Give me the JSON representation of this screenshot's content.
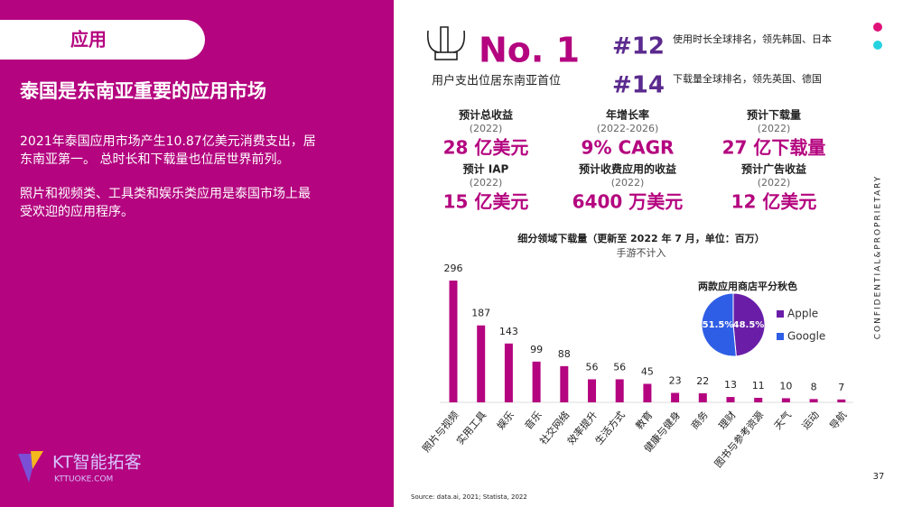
{
  "tab": "应用",
  "left": {
    "title": "泰国是东南亚重要的应用市场",
    "paragraphs": [
      "2021年泰国应用市场产生10.87亿美元消费支出，居",
      "东南亚第一。 总时长和下载量也位居世界前列。",
      "照片和视频类、工具类和娱乐类应用是泰国市场上最",
      "受欢迎的应用程序。"
    ]
  },
  "logo": {
    "name": "KT智能拓客",
    "url": "KTTUOKE.COM"
  },
  "rank": {
    "big": "No. 1",
    "caption": "用户支出位居东南亚首位",
    "items": [
      {
        "rank": "#12",
        "text": "使用时长全球排名，领先韩国、日本"
      },
      {
        "rank": "#14",
        "text": "下载量全球排名，领先英国、德国"
      }
    ]
  },
  "stats": [
    {
      "label": "预计总收益",
      "sub": "(2022)",
      "value": "28 亿美元"
    },
    {
      "label": "年增长率",
      "sub": "(2022-2026)",
      "value": "9% CAGR"
    },
    {
      "label": "预计下载量",
      "sub": "(2022)",
      "value": "27 亿下载量"
    },
    {
      "label": "预计 IAP",
      "sub": "(2022)",
      "value": "15 亿美元"
    },
    {
      "label": "预计收费应用的收益",
      "sub": "(2022)",
      "value": "6400 万美元"
    },
    {
      "label": "预计广告收益",
      "sub": "(2022)",
      "value": "12 亿美元"
    }
  ],
  "side_text": "CONFIDENTIAL&PROPRIETARY",
  "page_number": "37",
  "source": "Source: data.ai, 2021; Statista, 2022",
  "chart_data": [
    {
      "type": "bar",
      "title": "细分领域下载量（更新至 2022 年 7 月，单位：百万）",
      "subtitle": "手游不计入",
      "color": "#b4047f",
      "categories": [
        "照片与视频",
        "实用工具",
        "娱乐",
        "音乐",
        "社交网络",
        "效率提升",
        "生活方式",
        "教育",
        "健康与健身",
        "商务",
        "理财",
        "图书与参考资源",
        "天气",
        "运动",
        "导航"
      ],
      "values": [
        296,
        187,
        143,
        99,
        88,
        56,
        56,
        45,
        23,
        22,
        13,
        11,
        10,
        8,
        7
      ]
    },
    {
      "type": "pie",
      "title": "两款应用商店平分秋色",
      "legend": "right",
      "categories": [
        "Apple",
        "Google"
      ],
      "values": [
        48.5,
        51.5
      ],
      "value_labels": [
        "48.5%",
        "51.5%"
      ],
      "colors": [
        "#6a1ea8",
        "#2f5ee6"
      ]
    }
  ]
}
